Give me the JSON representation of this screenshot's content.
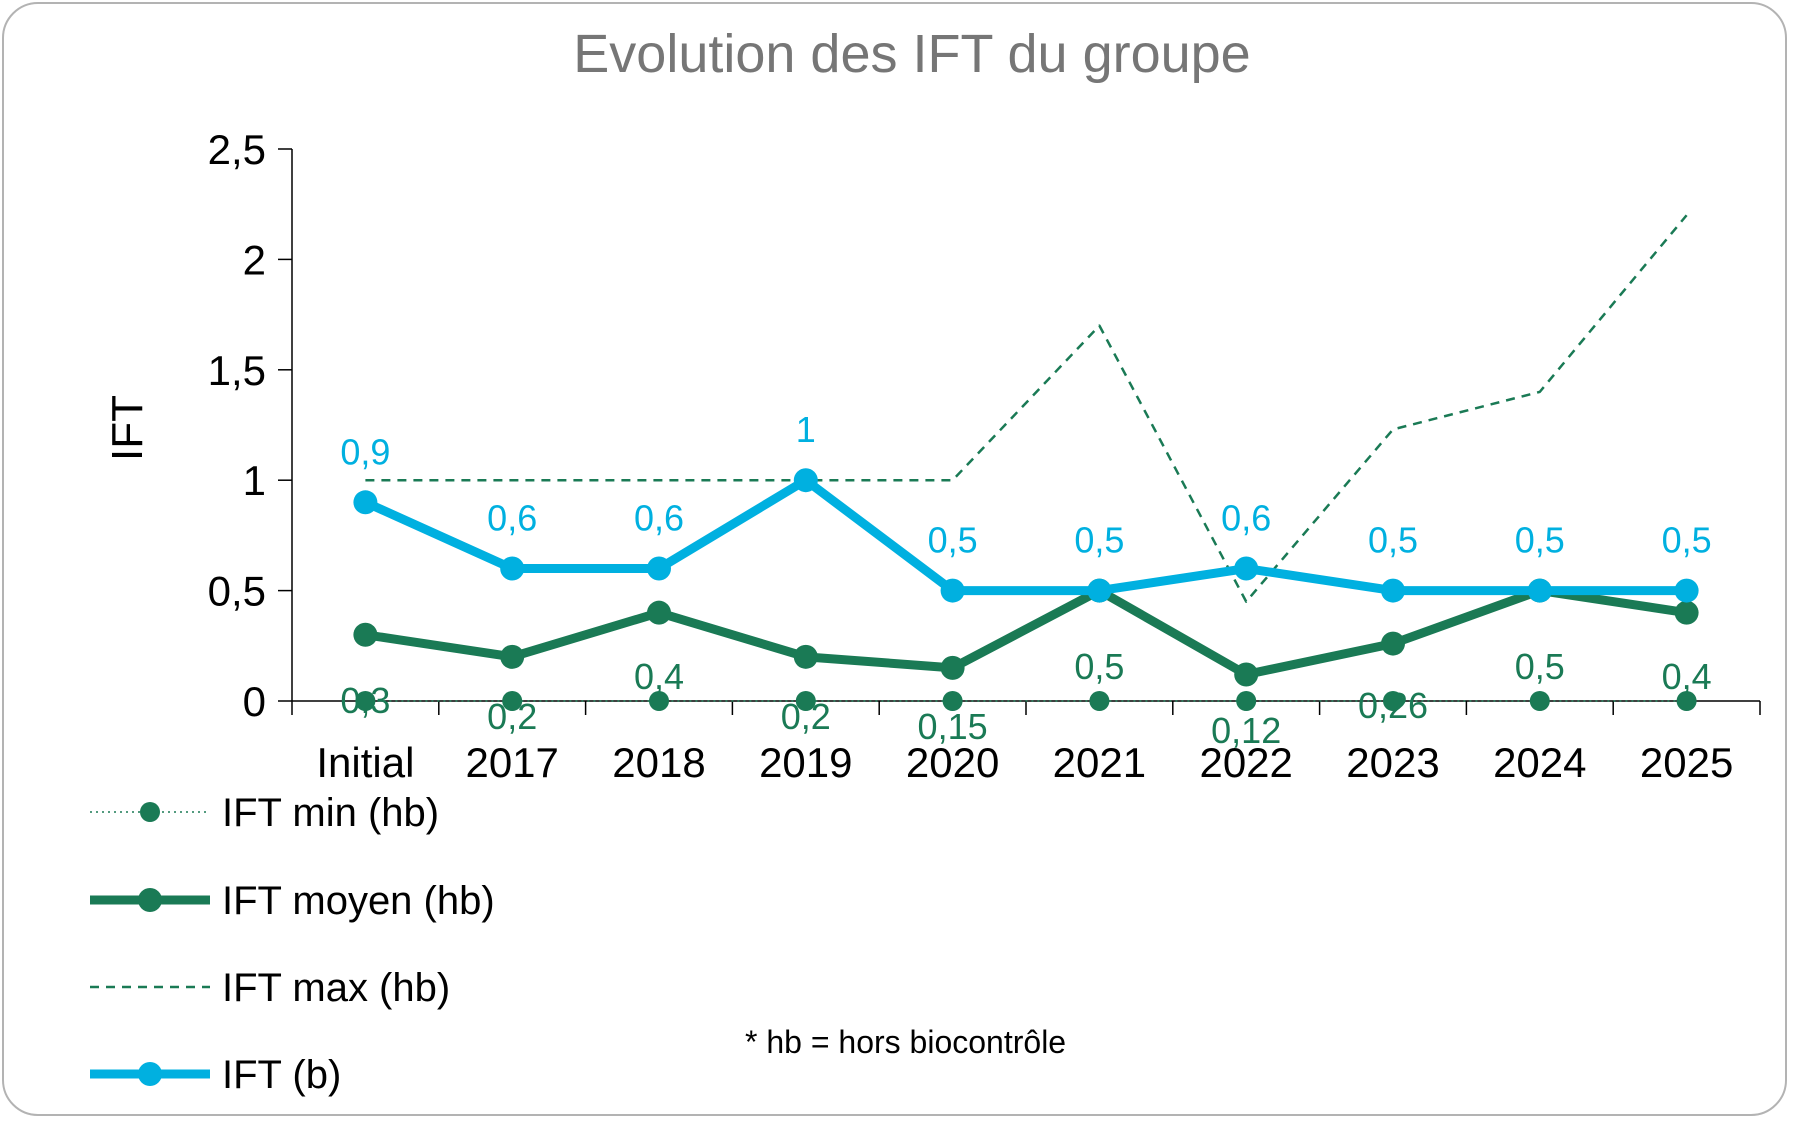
{
  "chart_data": {
    "type": "line",
    "title": "Evolution des IFT du groupe",
    "ylabel": "IFT",
    "xlabel": "",
    "ylim": [
      0,
      2.5
    ],
    "yticks": [
      "0",
      "0,5",
      "1",
      "1,5",
      "2",
      "2,5"
    ],
    "ytick_values": [
      0,
      0.5,
      1,
      1.5,
      2,
      2.5
    ],
    "categories": [
      "Initial",
      "2017",
      "2018",
      "2019",
      "2020",
      "2021",
      "2022",
      "2023",
      "2024",
      "2025"
    ],
    "grid": false,
    "legend_position": "bottom-left",
    "series": [
      {
        "name": "IFT min (hb)",
        "values": [
          0,
          0,
          0,
          0,
          0,
          0,
          0,
          0,
          0,
          0
        ],
        "color": "#1a7a55",
        "style": "dotted-marker"
      },
      {
        "name": "IFT moyen (hb)",
        "values": [
          0.3,
          0.2,
          0.4,
          0.2,
          0.15,
          0.5,
          0.12,
          0.26,
          0.5,
          0.4
        ],
        "labels": [
          "0,3",
          "0,2",
          "0,4",
          "0,2",
          "0,15",
          "0,5",
          "0,12",
          "0,26",
          "0,5",
          "0,4"
        ],
        "color": "#1a7a55",
        "style": "thick-marker"
      },
      {
        "name": "IFT max (hb)",
        "values": [
          1,
          1,
          1,
          1,
          1,
          1.7,
          0.45,
          1.23,
          1.4,
          2.2
        ],
        "color": "#1a7a55",
        "style": "dashed"
      },
      {
        "name": "IFT (b)",
        "values": [
          0.9,
          0.6,
          0.6,
          1,
          0.5,
          0.5,
          0.6,
          0.5,
          0.5,
          0.5
        ],
        "labels": [
          "0,9",
          "0,6",
          "0,6",
          "1",
          "0,5",
          "0,5",
          "0,6",
          "0,5",
          "0,5",
          "0,5"
        ],
        "color": "#00b0e0",
        "style": "thick-marker"
      }
    ],
    "note": "* hb = hors biocontrôle"
  }
}
